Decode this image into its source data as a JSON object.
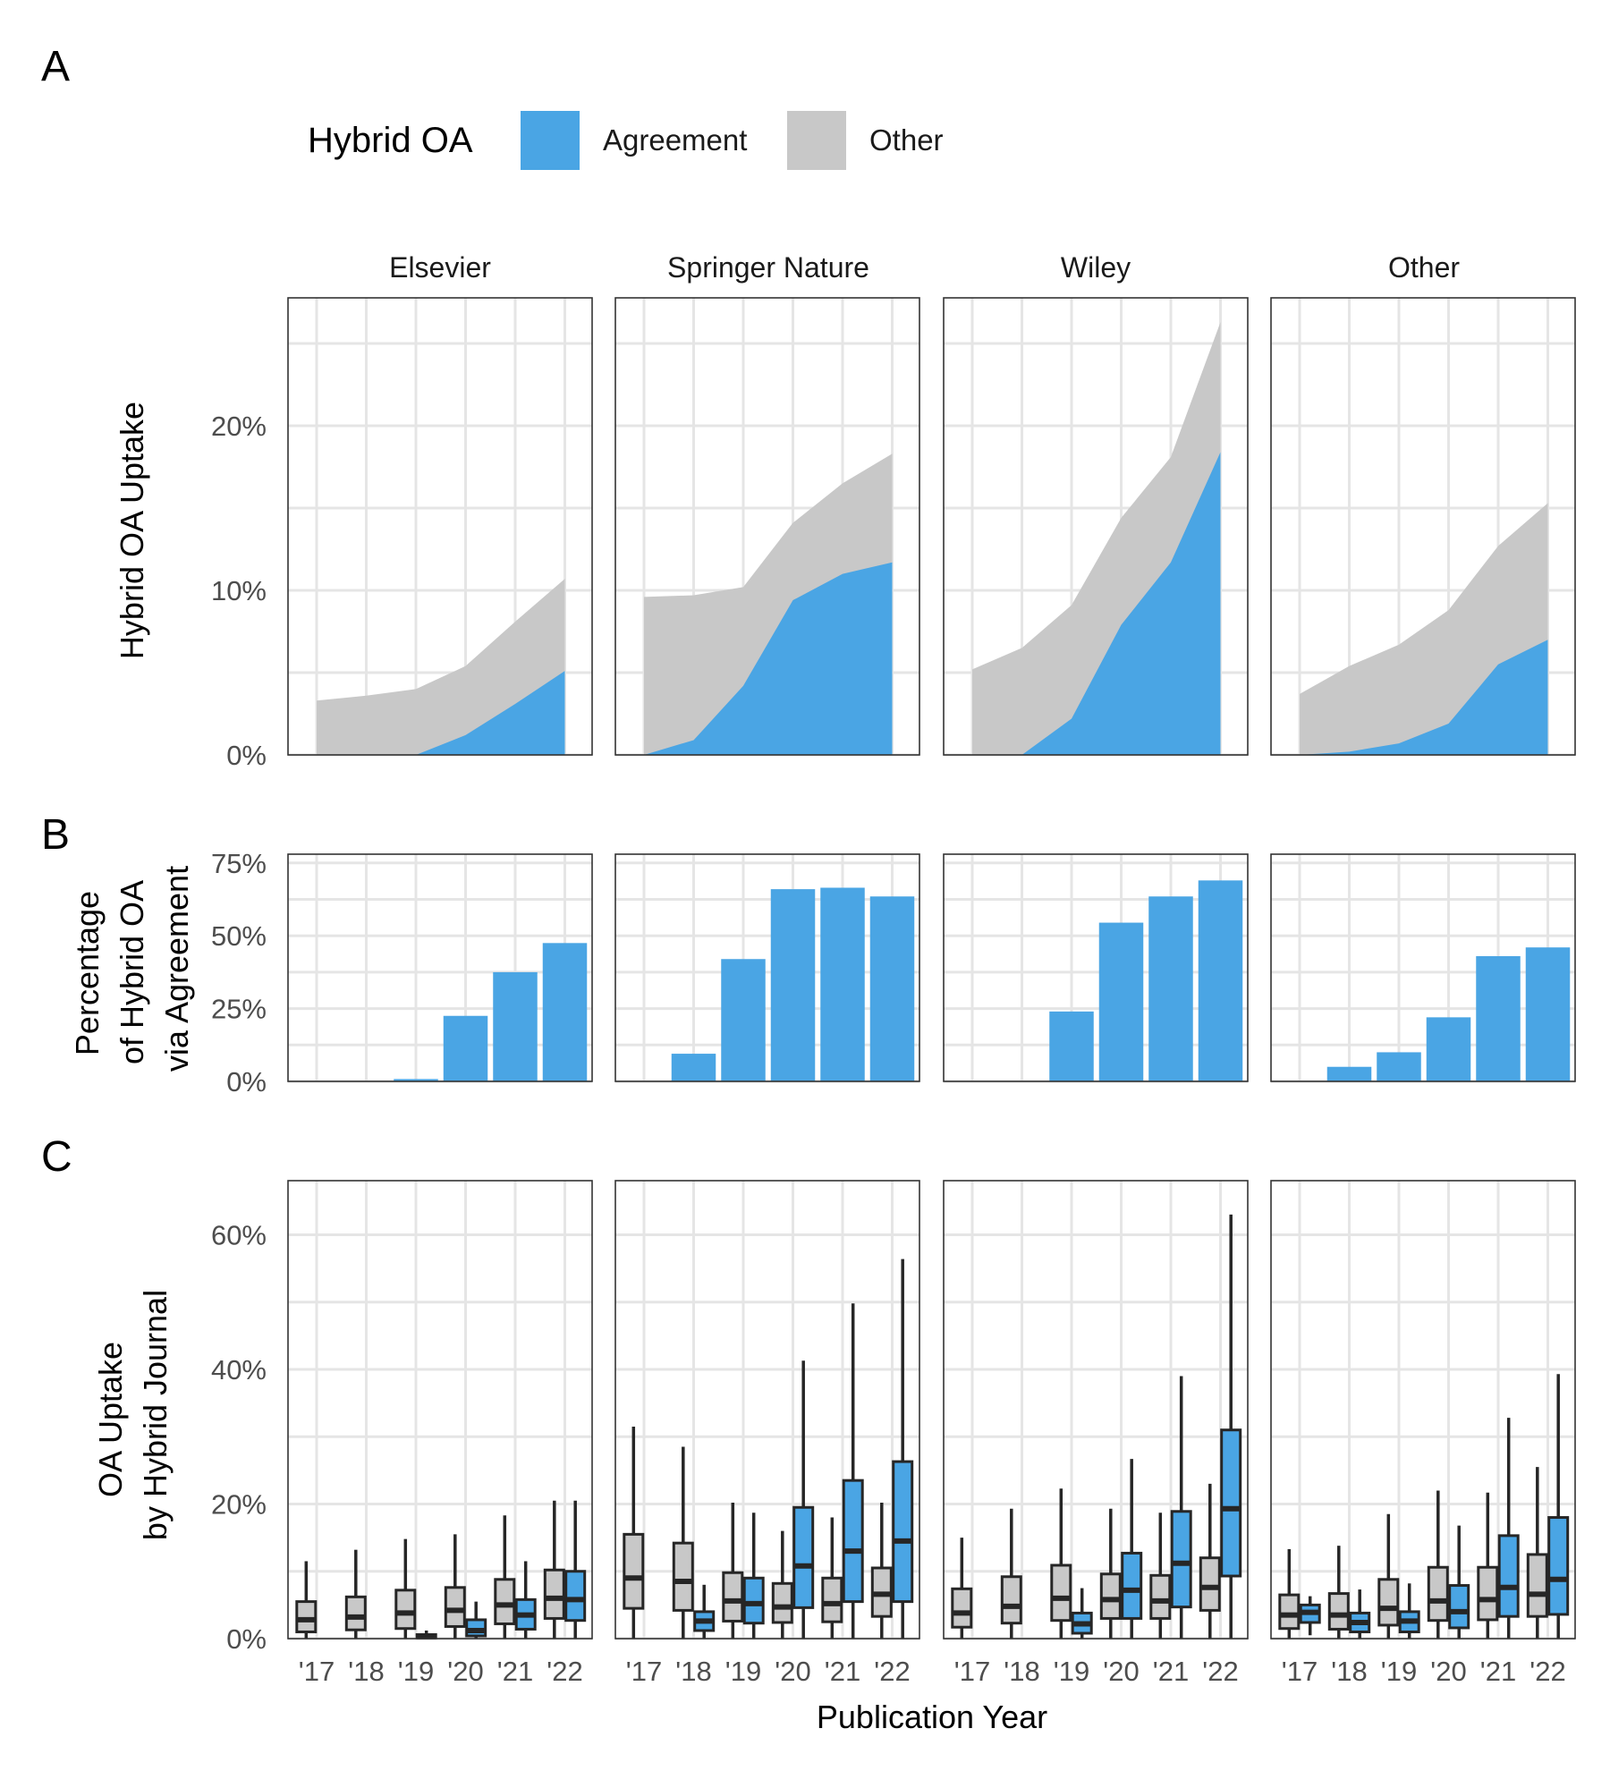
{
  "legend": {
    "title": "Hybrid OA",
    "items": [
      {
        "label": "Agreement",
        "color": "#4aa5e4"
      },
      {
        "label": "Other",
        "color": "#c8c8c8"
      }
    ]
  },
  "panel_letters": [
    "A",
    "B",
    "C"
  ],
  "publishers": [
    "Elsevier",
    "Springer Nature",
    "Wiley",
    "Other"
  ],
  "x_ticks": [
    "'17",
    "'18",
    "'19",
    "'20",
    "'21",
    "'22"
  ],
  "x_title": "Publication Year",
  "chart_data": [
    {
      "type": "area",
      "panel": "A",
      "ylabel": "Hybrid OA Uptake",
      "y_ticks": [
        "0%",
        "10%",
        "20%"
      ],
      "ylim": [
        0,
        26
      ],
      "x": [
        2017,
        2018,
        2019,
        2020,
        2021,
        2022
      ],
      "facets": [
        {
          "facet": "Elsevier",
          "agreement": [
            0,
            0,
            0,
            1.2,
            3.1,
            5.1
          ],
          "total": [
            3.3,
            3.6,
            4.0,
            5.4,
            8.1,
            10.7
          ]
        },
        {
          "facet": "Springer Nature",
          "agreement": [
            0,
            0.9,
            4.2,
            9.4,
            11.0,
            11.7
          ],
          "total": [
            9.6,
            9.7,
            10.2,
            14.1,
            16.5,
            18.3
          ]
        },
        {
          "facet": "Wiley",
          "agreement": [
            0,
            0,
            2.2,
            7.9,
            11.7,
            18.4
          ],
          "total": [
            5.2,
            6.5,
            9.1,
            14.4,
            18.1,
            26.3
          ]
        },
        {
          "facet": "Other",
          "agreement": [
            0,
            0.2,
            0.7,
            1.9,
            5.5,
            7.0
          ],
          "total": [
            3.7,
            5.4,
            6.7,
            8.8,
            12.7,
            15.3
          ]
        }
      ]
    },
    {
      "type": "bar",
      "panel": "B",
      "ylabel": [
        "Percentage",
        "of Hybrid OA",
        "via Agreement"
      ],
      "y_ticks": [
        "0%",
        "25%",
        "50%",
        "75%"
      ],
      "ylim": [
        0,
        76
      ],
      "categories": [
        2017,
        2018,
        2019,
        2020,
        2021,
        2022
      ],
      "facets": [
        {
          "facet": "Elsevier",
          "values": [
            0,
            0,
            0.8,
            22.5,
            37.5,
            47.5
          ]
        },
        {
          "facet": "Springer Nature",
          "values": [
            0,
            9.5,
            42,
            66,
            66.5,
            63.5
          ]
        },
        {
          "facet": "Wiley",
          "values": [
            0,
            0,
            24,
            54.5,
            63.5,
            69
          ]
        },
        {
          "facet": "Other",
          "values": [
            0,
            5,
            10,
            22,
            43,
            46
          ]
        }
      ]
    },
    {
      "type": "boxplot",
      "panel": "C",
      "ylabel": [
        "OA Uptake",
        "by Hybrid Journal"
      ],
      "y_ticks": [
        "0%",
        "20%",
        "40%",
        "60%"
      ],
      "ylim": [
        0,
        68
      ],
      "facets": [
        {
          "facet": "Elsevier",
          "boxes": [
            {
              "year": 2017,
              "group": "Other",
              "min": 0,
              "q1": 1,
              "median": 2.8,
              "q3": 5.5,
              "max": 11.5
            },
            {
              "year": 2018,
              "group": "Other",
              "min": 0,
              "q1": 1.3,
              "median": 3.2,
              "q3": 6.2,
              "max": 13.2
            },
            {
              "year": 2019,
              "group": "Other",
              "min": 0,
              "q1": 1.5,
              "median": 3.8,
              "q3": 7.2,
              "max": 14.8
            },
            {
              "year": 2019,
              "group": "Agreement",
              "min": 0,
              "q1": 0.1,
              "median": 0.3,
              "q3": 0.6,
              "max": 1.2
            },
            {
              "year": 2020,
              "group": "Other",
              "min": 0,
              "q1": 1.8,
              "median": 4.2,
              "q3": 7.6,
              "max": 15.5
            },
            {
              "year": 2020,
              "group": "Agreement",
              "min": 0,
              "q1": 0.4,
              "median": 1.2,
              "q3": 2.8,
              "max": 5.5
            },
            {
              "year": 2021,
              "group": "Other",
              "min": 0,
              "q1": 2.2,
              "median": 5.0,
              "q3": 8.8,
              "max": 18.3
            },
            {
              "year": 2021,
              "group": "Agreement",
              "min": 0,
              "q1": 1.4,
              "median": 3.5,
              "q3": 5.8,
              "max": 11.5
            },
            {
              "year": 2022,
              "group": "Other",
              "min": 0,
              "q1": 3.0,
              "median": 6.0,
              "q3": 10.2,
              "max": 20.5
            },
            {
              "year": 2022,
              "group": "Agreement",
              "min": 0,
              "q1": 2.7,
              "median": 5.8,
              "q3": 10.0,
              "max": 20.5
            }
          ]
        },
        {
          "facet": "Springer Nature",
          "boxes": [
            {
              "year": 2017,
              "group": "Other",
              "min": 0,
              "q1": 4.5,
              "median": 9.0,
              "q3": 15.5,
              "max": 31.5
            },
            {
              "year": 2018,
              "group": "Other",
              "min": 0,
              "q1": 4.2,
              "median": 8.5,
              "q3": 14.2,
              "max": 28.5
            },
            {
              "year": 2018,
              "group": "Agreement",
              "min": 0,
              "q1": 1.2,
              "median": 2.6,
              "q3": 4.0,
              "max": 8.0
            },
            {
              "year": 2019,
              "group": "Other",
              "min": 0,
              "q1": 2.6,
              "median": 5.6,
              "q3": 9.8,
              "max": 20.2
            },
            {
              "year": 2019,
              "group": "Agreement",
              "min": 0,
              "q1": 2.3,
              "median": 5.2,
              "q3": 9.0,
              "max": 18.7
            },
            {
              "year": 2020,
              "group": "Other",
              "min": 0,
              "q1": 2.4,
              "median": 4.7,
              "q3": 8.2,
              "max": 16.0
            },
            {
              "year": 2020,
              "group": "Agreement",
              "min": 0,
              "q1": 4.6,
              "median": 10.8,
              "q3": 19.5,
              "max": 41.3
            },
            {
              "year": 2021,
              "group": "Other",
              "min": 0,
              "q1": 2.5,
              "median": 5.2,
              "q3": 9.0,
              "max": 18.0
            },
            {
              "year": 2021,
              "group": "Agreement",
              "min": 0,
              "q1": 5.5,
              "median": 13.0,
              "q3": 23.5,
              "max": 49.8
            },
            {
              "year": 2022,
              "group": "Other",
              "min": 0,
              "q1": 3.3,
              "median": 6.6,
              "q3": 10.5,
              "max": 20.2
            },
            {
              "year": 2022,
              "group": "Agreement",
              "min": 0,
              "q1": 5.5,
              "median": 14.5,
              "q3": 26.3,
              "max": 56.4
            }
          ]
        },
        {
          "facet": "Wiley",
          "boxes": [
            {
              "year": 2017,
              "group": "Other",
              "min": 0,
              "q1": 1.7,
              "median": 3.8,
              "q3": 7.4,
              "max": 15.0
            },
            {
              "year": 2018,
              "group": "Other",
              "min": 0,
              "q1": 2.3,
              "median": 4.8,
              "q3": 9.2,
              "max": 19.3
            },
            {
              "year": 2019,
              "group": "Other",
              "min": 0,
              "q1": 2.7,
              "median": 6.0,
              "q3": 10.9,
              "max": 22.3
            },
            {
              "year": 2019,
              "group": "Agreement",
              "min": 0,
              "q1": 0.8,
              "median": 2.2,
              "q3": 3.8,
              "max": 7.5
            },
            {
              "year": 2020,
              "group": "Other",
              "min": 0,
              "q1": 3.0,
              "median": 5.8,
              "q3": 9.6,
              "max": 19.3
            },
            {
              "year": 2020,
              "group": "Agreement",
              "min": 0,
              "q1": 3.0,
              "median": 7.2,
              "q3": 12.7,
              "max": 26.7
            },
            {
              "year": 2021,
              "group": "Other",
              "min": 0,
              "q1": 3.0,
              "median": 5.6,
              "q3": 9.4,
              "max": 18.7
            },
            {
              "year": 2021,
              "group": "Agreement",
              "min": 0,
              "q1": 4.7,
              "median": 11.2,
              "q3": 18.9,
              "max": 39.0
            },
            {
              "year": 2022,
              "group": "Other",
              "min": 0,
              "q1": 4.2,
              "median": 7.6,
              "q3": 12.0,
              "max": 23.0
            },
            {
              "year": 2022,
              "group": "Agreement",
              "min": 0,
              "q1": 9.3,
              "median": 19.3,
              "q3": 31.0,
              "max": 63.0
            }
          ]
        },
        {
          "facet": "Other",
          "boxes": [
            {
              "year": 2017,
              "group": "Other",
              "min": 0,
              "q1": 1.5,
              "median": 3.5,
              "q3": 6.5,
              "max": 13.3
            },
            {
              "year": 2017,
              "group": "Agreement",
              "min": 0.5,
              "q1": 2.4,
              "median": 3.9,
              "q3": 5.0,
              "max": 6.3
            },
            {
              "year": 2018,
              "group": "Other",
              "min": 0,
              "q1": 1.4,
              "median": 3.5,
              "q3": 6.7,
              "max": 13.8
            },
            {
              "year": 2018,
              "group": "Agreement",
              "min": 0,
              "q1": 1.0,
              "median": 2.4,
              "q3": 3.8,
              "max": 7.3
            },
            {
              "year": 2019,
              "group": "Other",
              "min": 0,
              "q1": 2.0,
              "median": 4.5,
              "q3": 8.8,
              "max": 18.5
            },
            {
              "year": 2019,
              "group": "Agreement",
              "min": 0,
              "q1": 1.0,
              "median": 2.6,
              "q3": 4.0,
              "max": 8.2
            },
            {
              "year": 2020,
              "group": "Other",
              "min": 0,
              "q1": 2.7,
              "median": 5.6,
              "q3": 10.6,
              "max": 22.0
            },
            {
              "year": 2020,
              "group": "Agreement",
              "min": 0,
              "q1": 1.6,
              "median": 4.0,
              "q3": 7.9,
              "max": 16.8
            },
            {
              "year": 2021,
              "group": "Other",
              "min": 0,
              "q1": 2.8,
              "median": 5.8,
              "q3": 10.6,
              "max": 21.7
            },
            {
              "year": 2021,
              "group": "Agreement",
              "min": 0,
              "q1": 3.3,
              "median": 7.6,
              "q3": 15.3,
              "max": 32.8
            },
            {
              "year": 2022,
              "group": "Other",
              "min": 0,
              "q1": 3.3,
              "median": 6.6,
              "q3": 12.5,
              "max": 25.5
            },
            {
              "year": 2022,
              "group": "Agreement",
              "min": 0,
              "q1": 3.6,
              "median": 8.8,
              "q3": 18.0,
              "max": 39.3
            }
          ]
        }
      ]
    }
  ]
}
